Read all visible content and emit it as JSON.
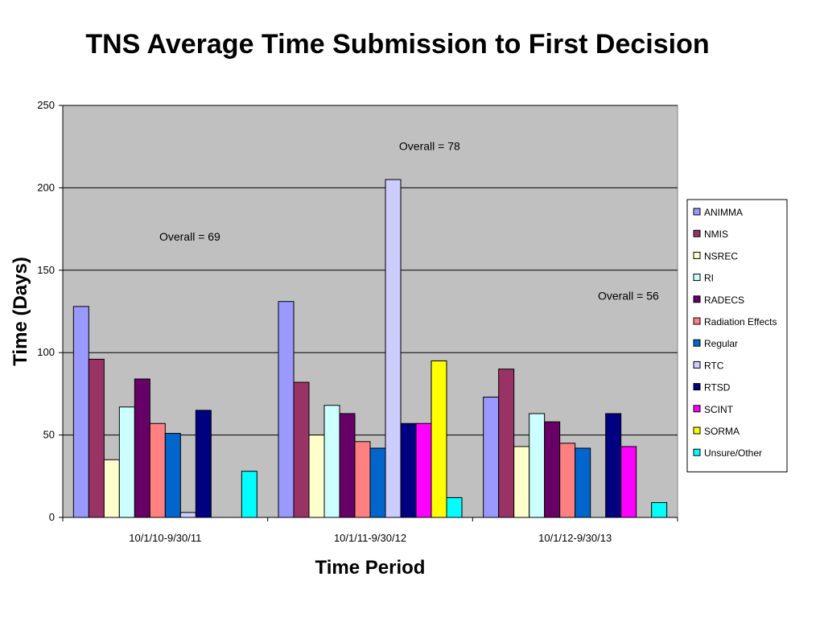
{
  "chart_data": {
    "type": "bar",
    "title": "TNS Average Time Submission to First Decision",
    "xlabel": "Time Period",
    "ylabel": "Time (Days)",
    "ylim": [
      0,
      250
    ],
    "yticks": [
      0,
      50,
      100,
      150,
      200,
      250
    ],
    "grid": true,
    "legend_position": "right",
    "plot_background": "#c0c0c0",
    "categories": [
      "10/1/10-9/30/11",
      "10/1/11-9/30/12",
      "10/1/12-9/30/13"
    ],
    "series": [
      {
        "name": "ANIMMA",
        "color": "#9999ff",
        "values": [
          128,
          131,
          73
        ]
      },
      {
        "name": "NMIS",
        "color": "#993366",
        "values": [
          96,
          82,
          90
        ]
      },
      {
        "name": "NSREC",
        "color": "#ffffcc",
        "values": [
          35,
          50,
          43
        ]
      },
      {
        "name": "RI",
        "color": "#ccffff",
        "values": [
          67,
          68,
          63
        ]
      },
      {
        "name": "RADECS",
        "color": "#660066",
        "values": [
          84,
          63,
          58
        ]
      },
      {
        "name": "Radiation Effects",
        "color": "#ff8080",
        "values": [
          57,
          46,
          45
        ]
      },
      {
        "name": "Regular",
        "color": "#0066cc",
        "values": [
          51,
          42,
          42
        ]
      },
      {
        "name": "RTC",
        "color": "#ccccff",
        "values": [
          3,
          205,
          null
        ]
      },
      {
        "name": "RTSD",
        "color": "#000080",
        "values": [
          65,
          57,
          63
        ]
      },
      {
        "name": "SCINT",
        "color": "#ff00ff",
        "values": [
          null,
          57,
          43
        ]
      },
      {
        "name": "SORMA",
        "color": "#ffff00",
        "values": [
          null,
          95,
          null
        ]
      },
      {
        "name": "Unsure/Other",
        "color": "#00ffff",
        "values": [
          28,
          12,
          9
        ]
      }
    ],
    "annotations": [
      {
        "text": "Overall = 69",
        "category": 0
      },
      {
        "text": "Overall = 78",
        "category": 1
      },
      {
        "text": "Overall = 56",
        "category": 2
      }
    ]
  }
}
